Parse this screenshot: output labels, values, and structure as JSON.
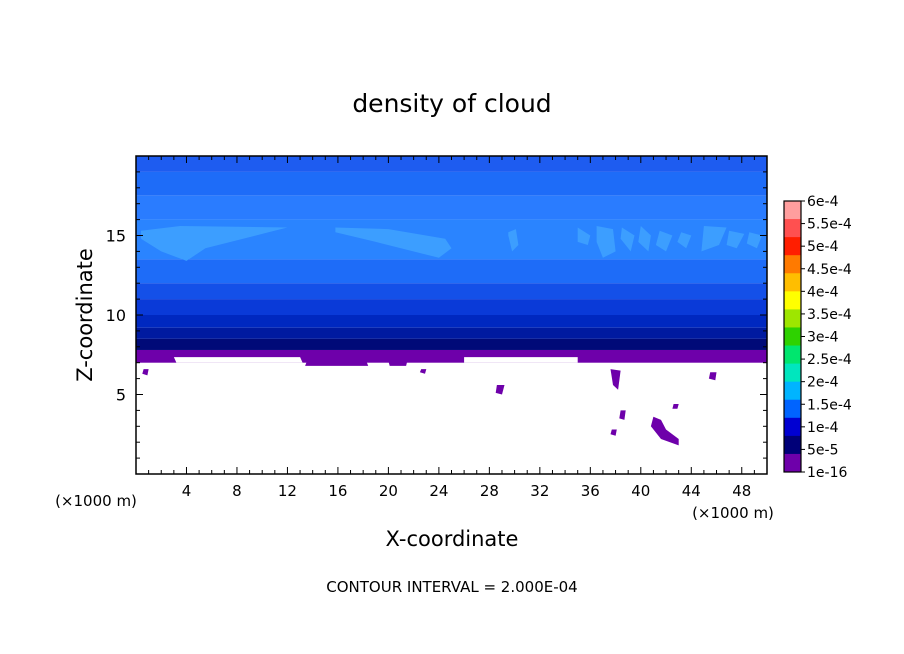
{
  "chart_data": {
    "type": "heatmap",
    "title": "density of cloud",
    "xlabel": "X-coordinate",
    "ylabel": "Z-coordinate",
    "x_unit_left": "(×1000 m)",
    "x_unit_right": "(×1000 m)",
    "xlim": [
      0,
      50
    ],
    "ylim": [
      0,
      20
    ],
    "x_ticks": [
      4,
      8,
      12,
      16,
      20,
      24,
      28,
      32,
      36,
      40,
      44,
      48
    ],
    "y_ticks": [
      5,
      10,
      15
    ],
    "footer": "CONTOUR INTERVAL = 2.000E-04",
    "colorbar": {
      "labels": [
        "6e-4",
        "5.5e-4",
        "5e-4",
        "4.5e-4",
        "4e-4",
        "3.5e-4",
        "3e-4",
        "2.5e-4",
        "2e-4",
        "1.5e-4",
        "1e-4",
        "5e-5",
        "1e-16"
      ],
      "colors": [
        "#ff9e9e",
        "#ff5050",
        "#ff1e00",
        "#ff7a00",
        "#ffbe00",
        "#ffff00",
        "#9ee600",
        "#2ed200",
        "#00e66e",
        "#00e6be",
        "#00b4ff",
        "#0064ff",
        "#0000d2",
        "#000078",
        "#6e00aa"
      ]
    },
    "layers": [
      {
        "z_from": 19.0,
        "z_to": 20.0,
        "color": "#1e5cf0"
      },
      {
        "z_from": 17.5,
        "z_to": 19.0,
        "color": "#1e6cf8"
      },
      {
        "z_from": 16.0,
        "z_to": 17.5,
        "color": "#2a7cff"
      },
      {
        "z_from": 13.5,
        "z_to": 16.0,
        "color": "#2a84ff"
      },
      {
        "z_from": 12.0,
        "z_to": 13.5,
        "color": "#1e6cf8"
      },
      {
        "z_from": 11.0,
        "z_to": 12.0,
        "color": "#1450e8"
      },
      {
        "z_from": 10.0,
        "z_to": 11.0,
        "color": "#0a3ad8"
      },
      {
        "z_from": 9.2,
        "z_to": 10.0,
        "color": "#0028c0"
      },
      {
        "z_from": 8.5,
        "z_to": 9.2,
        "color": "#001aa0"
      },
      {
        "z_from": 7.8,
        "z_to": 8.5,
        "color": "#000a78"
      },
      {
        "z_from": 7.0,
        "z_to": 7.8,
        "color": "#6e00aa"
      }
    ],
    "light_patches": {
      "color": "#3c9eff",
      "shapes": [
        {
          "x": [
            0.4,
            3.5,
            12.0,
            10.5,
            5.5,
            4.0,
            2.0,
            0.4
          ],
          "z": [
            15.3,
            15.6,
            15.5,
            15.2,
            14.2,
            13.4,
            14.0,
            14.8
          ]
        },
        {
          "x": [
            15.8,
            20.0,
            24.5,
            25.0,
            24.0,
            19.0,
            15.8
          ],
          "z": [
            15.5,
            15.4,
            14.8,
            14.2,
            13.6,
            14.6,
            15.2
          ]
        },
        {
          "x": [
            29.5,
            30.1,
            30.3,
            29.8,
            29.5
          ],
          "z": [
            15.2,
            15.4,
            14.4,
            14.0,
            15.0
          ]
        },
        {
          "x": [
            35.0,
            36.0,
            35.8,
            35.0
          ],
          "z": [
            15.5,
            15.0,
            14.4,
            14.6
          ]
        },
        {
          "x": [
            36.5,
            37.8,
            38.0,
            37.0,
            36.5
          ],
          "z": [
            15.6,
            15.4,
            14.0,
            13.6,
            14.6
          ]
        },
        {
          "x": [
            38.5,
            39.5,
            39.2,
            38.4
          ],
          "z": [
            15.5,
            15.0,
            14.0,
            14.8
          ]
        },
        {
          "x": [
            40.0,
            40.8,
            40.6,
            39.8
          ],
          "z": [
            15.6,
            15.0,
            14.0,
            14.6
          ]
        },
        {
          "x": [
            41.5,
            42.5,
            42.0,
            41.2
          ],
          "z": [
            15.3,
            15.0,
            14.0,
            14.4
          ]
        },
        {
          "x": [
            43.2,
            44.0,
            43.6,
            42.9
          ],
          "z": [
            15.2,
            15.0,
            14.2,
            14.6
          ]
        },
        {
          "x": [
            45.0,
            46.8,
            46.2,
            44.8
          ],
          "z": [
            15.6,
            15.5,
            14.4,
            14.0
          ]
        },
        {
          "x": [
            47.0,
            48.2,
            47.6,
            46.8
          ],
          "z": [
            15.3,
            15.1,
            14.2,
            14.4
          ]
        },
        {
          "x": [
            48.6,
            49.6,
            49.2,
            48.4
          ],
          "z": [
            15.2,
            15.0,
            14.2,
            14.5
          ]
        }
      ]
    },
    "purple_blobs": {
      "color": "#6e00aa",
      "shapes": [
        {
          "x": [
            0.6,
            1.0,
            0.9,
            0.5
          ],
          "z": [
            6.6,
            6.6,
            6.2,
            6.3
          ]
        },
        {
          "x": [
            13.6,
            18.2,
            18.4,
            13.4
          ],
          "z": [
            7.2,
            7.2,
            6.8,
            6.8
          ]
        },
        {
          "x": [
            20.0,
            21.5,
            21.4,
            20.1
          ],
          "z": [
            7.1,
            7.1,
            6.8,
            6.8
          ]
        },
        {
          "x": [
            22.6,
            23.0,
            22.9,
            22.5
          ],
          "z": [
            6.6,
            6.6,
            6.3,
            6.4
          ]
        },
        {
          "x": [
            28.6,
            29.2,
            29.0,
            28.5
          ],
          "z": [
            5.6,
            5.6,
            5.0,
            5.1
          ]
        },
        {
          "x": [
            37.6,
            38.4,
            38.2,
            37.8
          ],
          "z": [
            6.6,
            6.5,
            5.3,
            5.6
          ]
        },
        {
          "x": [
            38.4,
            38.8,
            38.7,
            38.3
          ],
          "z": [
            4.0,
            4.0,
            3.4,
            3.5
          ]
        },
        {
          "x": [
            37.7,
            38.1,
            38.0,
            37.6
          ],
          "z": [
            2.8,
            2.8,
            2.4,
            2.5
          ]
        },
        {
          "x": [
            41.0,
            41.6,
            42.0,
            43.0,
            43.0,
            41.6,
            40.8
          ],
          "z": [
            3.6,
            3.4,
            2.8,
            2.2,
            1.8,
            2.2,
            3.0
          ]
        },
        {
          "x": [
            42.6,
            43.0,
            42.9,
            42.5
          ],
          "z": [
            4.4,
            4.4,
            4.1,
            4.1
          ]
        },
        {
          "x": [
            45.5,
            46.0,
            45.9,
            45.4
          ],
          "z": [
            6.4,
            6.4,
            5.9,
            6.0
          ]
        }
      ]
    },
    "gaps": {
      "color": "#ffffff",
      "shapes": [
        {
          "x": [
            3.0,
            13.0,
            13.2,
            3.2
          ],
          "z": [
            7.35,
            7.35,
            7.0,
            7.0
          ]
        },
        {
          "x": [
            26.0,
            35.0,
            35.0,
            26.0
          ],
          "z": [
            7.35,
            7.35,
            7.0,
            7.0
          ]
        }
      ]
    }
  }
}
